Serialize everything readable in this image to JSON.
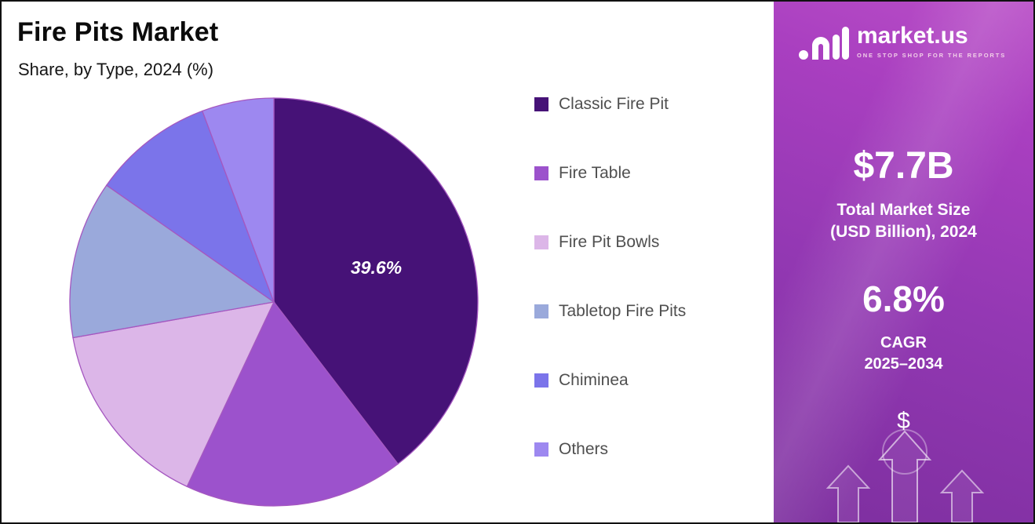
{
  "header": {
    "title": "Fire Pits Market",
    "subtitle": "Share, by Type, 2024 (%)"
  },
  "chart_data": {
    "type": "pie",
    "title": "Fire Pits Market",
    "subtitle": "Share, by Type, 2024 (%)",
    "unit": "%",
    "start_angle_deg": -90,
    "direction": "clockwise",
    "legend_position": "right",
    "slices": [
      {
        "label": "Classic Fire Pit",
        "value": 39.6,
        "color": "#461277",
        "data_label": "39.6%"
      },
      {
        "label": "Fire Table",
        "value": 17.4,
        "color": "#9c52cc"
      },
      {
        "label": "Fire Pit Bowls",
        "value": 15.2,
        "color": "#dcb6e8"
      },
      {
        "label": "Tabletop Fire Pits",
        "value": 12.5,
        "color": "#9aa9db"
      },
      {
        "label": "Chiminea",
        "value": 9.6,
        "color": "#7b74ea"
      },
      {
        "label": "Others",
        "value": 5.7,
        "color": "#9d88f0"
      }
    ]
  },
  "right_panel": {
    "brand": "market.us",
    "tagline": "ONE STOP SHOP FOR THE REPORTS",
    "market_size_value": "$7.7B",
    "market_size_label_line1": "Total Market Size",
    "market_size_label_line2": "(USD Billion), 2024",
    "cagr_value": "6.8%",
    "cagr_label_line1": "CAGR",
    "cagr_label_line2": "2025–2034",
    "dollar_icon": "$"
  },
  "colors": {
    "pie_stroke": "#a558c0",
    "legend_text": "#4f4f4f",
    "panel_gradient_top": "#b94ec7",
    "panel_gradient_bottom": "#7d2f9f",
    "slice_label_text": "#ffffff"
  }
}
